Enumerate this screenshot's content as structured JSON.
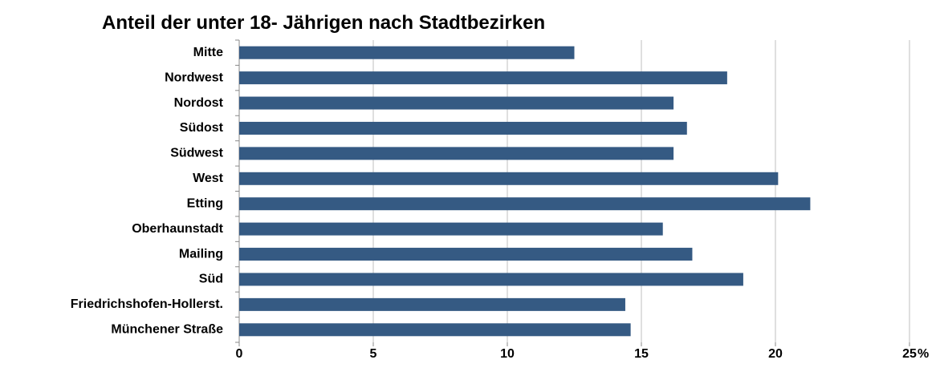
{
  "chart_data": {
    "type": "bar",
    "orientation": "horizontal",
    "title": "Anteil der unter 18- Jährigen nach Stadtbezirken",
    "categories": [
      "Mitte",
      "Nordwest",
      "Nordost",
      "Südost",
      "Südwest",
      "West",
      "Etting",
      "Oberhaunstadt",
      "Mailing",
      "Süd",
      "Friedrichshofen-Hollerst.",
      "Münchener Straße"
    ],
    "values": [
      12.5,
      18.2,
      16.2,
      16.7,
      16.2,
      20.1,
      21.3,
      15.8,
      16.9,
      18.8,
      14.4,
      14.6
    ],
    "color": "#355a83",
    "xlim": [
      0,
      25
    ],
    "xticks": [
      0,
      5,
      10,
      15,
      20,
      25
    ],
    "x_unit": "%",
    "grid": true
  }
}
